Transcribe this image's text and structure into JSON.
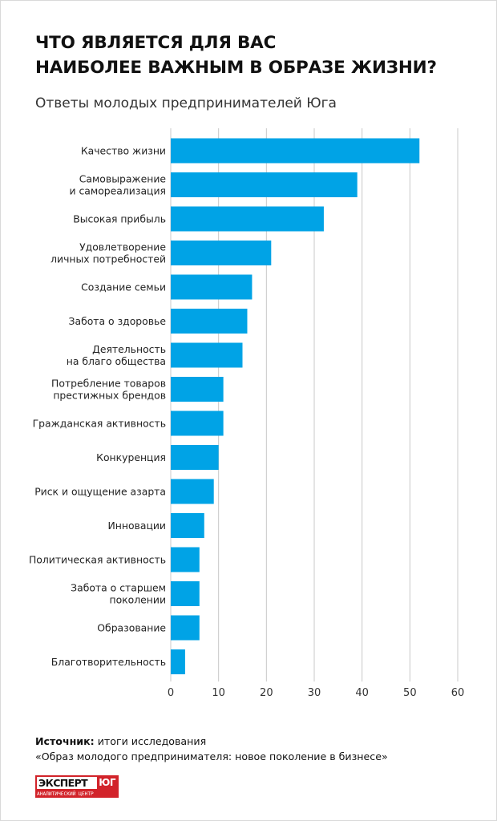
{
  "header": {
    "title_line1": "ЧТО ЯВЛЯЕТСЯ ДЛЯ ВАС",
    "title_line2": "НАИБОЛЕЕ ВАЖНЫМ В ОБРАЗЕ ЖИЗНИ?",
    "subtitle": "Ответы молодых предпринимателей Юга"
  },
  "chart_data": {
    "type": "bar",
    "orientation": "horizontal",
    "title": "ЧТО ЯВЛЯЕТСЯ ДЛЯ ВАС НАИБОЛЕЕ ВАЖНЫМ В ОБРАЗЕ ЖИЗНИ?",
    "subtitle": "Ответы молодых предпринимателей Юга",
    "categories": [
      [
        "Качество жизни"
      ],
      [
        "Самовыражение",
        "и самореализация"
      ],
      [
        "Высокая прибыль"
      ],
      [
        "Удовлетворение",
        "личных потребностей"
      ],
      [
        "Создание семьи"
      ],
      [
        "Забота о здоровье"
      ],
      [
        "Деятельность",
        "на благо общества"
      ],
      [
        "Потребление товаров",
        "престижных брендов"
      ],
      [
        "Гражданская активность"
      ],
      [
        "Конкуренция"
      ],
      [
        "Риск и ощущение азарта"
      ],
      [
        "Инновации"
      ],
      [
        "Политическая активность"
      ],
      [
        "Забота о старшем",
        "поколении"
      ],
      [
        "Образование"
      ],
      [
        "Благотворительность"
      ]
    ],
    "values": [
      52,
      39,
      32,
      21,
      17,
      16,
      15,
      11,
      11,
      10,
      9,
      7,
      6,
      6,
      6,
      3
    ],
    "xlim": [
      0,
      60
    ],
    "xticks": [
      0,
      10,
      20,
      30,
      40,
      50,
      60
    ],
    "xlabel": "",
    "ylabel": "",
    "grid": true,
    "bar_color": "#00a3e6",
    "grid_color": "#c8c8c8"
  },
  "source": {
    "label": "Источник:",
    "line1": "итоги исследования",
    "line2": "«Образ молодого предпринимателя: новое поколение в бизнесе»"
  },
  "logo": {
    "brand": "ЭКСПЕРТ",
    "region": "ЮГ",
    "tagline": "АНАЛИТИЧЕСКИЙ ЦЕНТР",
    "color": "#d2232a"
  }
}
